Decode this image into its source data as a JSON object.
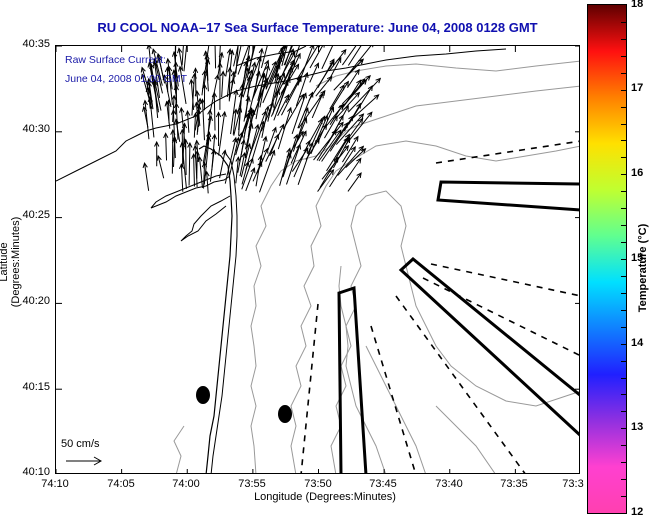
{
  "title": "RU COOL  NOAA–17  Sea Surface Temperature:  June 04, 2008 0128 GMT",
  "current_legend": {
    "line1": "Raw Surface Current:",
    "line2": "June 04, 2008 01:00 GMT"
  },
  "scale_arrow": {
    "label": "50 cm/s",
    "speed_cm_s": 50
  },
  "axes": {
    "xlabel": "Longitude (Degrees:Minutes)",
    "ylabel": "Latitude (Degrees:Minutes)",
    "xticks": [
      "74:10",
      "74:05",
      "74:00",
      "73:55",
      "73:50",
      "73:45",
      "73:40",
      "73:35",
      "73:3"
    ],
    "yticks": [
      "40:35",
      "40:30",
      "40:25",
      "40:20",
      "40:15",
      "40:10"
    ],
    "xrange_deg_min": [
      "74:10",
      "73:30"
    ],
    "yrange_deg_min": [
      "40:10",
      "40:35"
    ]
  },
  "colorbar": {
    "label": "Temperature (°C)",
    "ticks": [
      "18",
      "17",
      "16",
      "15",
      "14",
      "13",
      "12"
    ],
    "range": [
      12,
      18
    ],
    "colors": [
      "#ff40b0",
      "#ff40d0",
      "#9030e0",
      "#2020ff",
      "#1080ff",
      "#00e0ff",
      "#60ff90",
      "#c0ff30",
      "#ffe000",
      "#ff8000",
      "#ff1010",
      "#600000"
    ]
  },
  "chart_data": {
    "type": "map",
    "title": "RU COOL  NOAA–17  Sea Surface Temperature:  June 04, 2008 0128 GMT",
    "xlabel": "Longitude (Degrees:Minutes)",
    "ylabel": "Latitude (Degrees:Minutes)",
    "xlim": [
      -74.1667,
      -73.5
    ],
    "ylim": [
      40.1667,
      40.5833
    ],
    "markers": [
      {
        "name": "buoy-1",
        "lon": -73.98,
        "lat": 40.245
      },
      {
        "name": "buoy-2",
        "lon": -73.872,
        "lat": 40.225
      }
    ],
    "current_vectors": {
      "region_lon": [
        -74.05,
        -73.79
      ],
      "region_lat": [
        40.44,
        40.565
      ],
      "mean_direction_deg_from_north": 15,
      "typical_speed_cm_s": 50
    },
    "polygons": [
      {
        "name": "transect-box-north",
        "style": "solid"
      },
      {
        "name": "transect-box-diagonal",
        "style": "solid"
      },
      {
        "name": "transect-box-south",
        "style": "solid"
      }
    ],
    "dashed_lines": 6,
    "legend": [
      "Raw Surface Current: June 04, 2008 01:00 GMT",
      "50 cm/s"
    ]
  }
}
